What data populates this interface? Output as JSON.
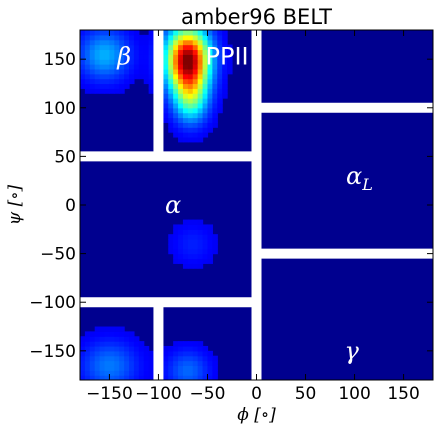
{
  "chart_data": {
    "type": "heatmap",
    "title": "amber96 BELT",
    "xlabel": "ϕ [∘]",
    "ylabel": "ψ [∘]",
    "xlim": [
      -180,
      180
    ],
    "ylim": [
      -180,
      180
    ],
    "xticks": [
      -150,
      -100,
      -50,
      0,
      50,
      100,
      150
    ],
    "yticks": [
      150,
      100,
      50,
      0,
      -50,
      -100,
      -150
    ],
    "xtick_labels": [
      "−150",
      "−100",
      "−50",
      "0",
      "50",
      "100",
      "150"
    ],
    "ytick_labels": [
      "150",
      "100",
      "50",
      "0",
      "−50",
      "−100",
      "−150"
    ],
    "colormap": "jet",
    "background_color": "#00008f",
    "separator_color": "#ffffff",
    "grid": false,
    "separators": [
      {
        "x1": -180,
        "y1": 50,
        "x2": 0,
        "y2": 50
      },
      {
        "x1": -180,
        "y1": -100,
        "x2": 0,
        "y2": -100
      },
      {
        "x1": -100,
        "y1": 50,
        "x2": -100,
        "y2": 180
      },
      {
        "x1": -100,
        "y1": -100,
        "x2": -100,
        "y2": -180
      },
      {
        "x1": 0,
        "y1": -180,
        "x2": 0,
        "y2": 180
      },
      {
        "x1": 0,
        "y1": 100,
        "x2": 180,
        "y2": 100
      },
      {
        "x1": 0,
        "y1": -50,
        "x2": 180,
        "y2": -50
      }
    ],
    "density_peaks": [
      {
        "phi": -70,
        "psi": 150,
        "sigma_phi": 15,
        "sigma_psi": 22,
        "intensity": 1.0
      },
      {
        "phi": -67,
        "psi": 110,
        "sigma_phi": 12,
        "sigma_psi": 18,
        "intensity": 0.35
      },
      {
        "phi": -155,
        "psi": 155,
        "sigma_phi": 18,
        "sigma_psi": 18,
        "intensity": 0.22
      },
      {
        "phi": -150,
        "psi": -165,
        "sigma_phi": 20,
        "sigma_psi": 18,
        "intensity": 0.16
      },
      {
        "phi": -70,
        "psi": -170,
        "sigma_phi": 15,
        "sigma_psi": 15,
        "intensity": 0.14
      },
      {
        "phi": -65,
        "psi": -40,
        "sigma_phi": 15,
        "sigma_psi": 15,
        "intensity": 0.06
      }
    ],
    "region_labels": [
      {
        "text": "β",
        "phi": -135,
        "psi": 153,
        "style": "math"
      },
      {
        "text": "PPII",
        "phi": -30,
        "psi": 153,
        "style": "roman"
      },
      {
        "text": "α",
        "phi": -85,
        "psi": 0,
        "style": "math"
      },
      {
        "text": "αL",
        "phi": 105,
        "psi": 30,
        "style": "math"
      },
      {
        "text": "γ",
        "phi": 97,
        "psi": -150,
        "style": "math"
      }
    ]
  }
}
